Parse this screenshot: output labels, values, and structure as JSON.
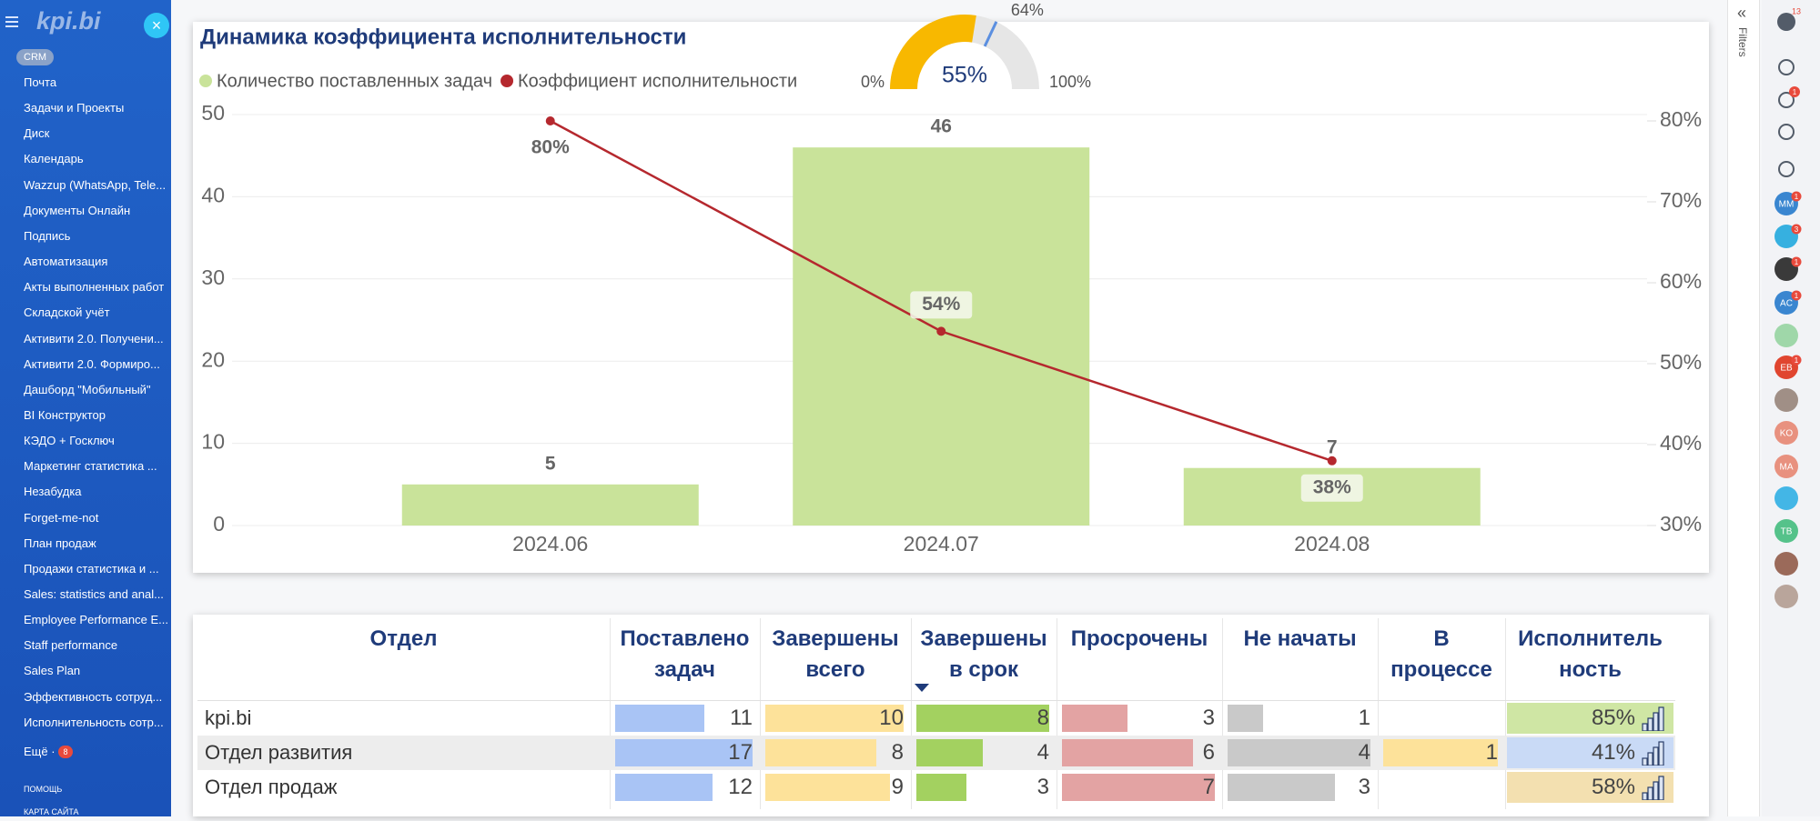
{
  "sidebar": {
    "logo": "kpi.bi",
    "crm": "CRM",
    "items": [
      "Почта",
      "Задачи и Проекты",
      "Диск",
      "Календарь",
      "Wazzup (WhatsApp, Tele...",
      "Документы Онлайн",
      "Подпись",
      "Автоматизация",
      "Акты выполненных работ",
      "Складской учёт",
      "Активити 2.0. Получени...",
      "Активити 2.0. Формиро...",
      "Дашборд \"Мобильный\"",
      "BI Конструктор",
      "КЭДО + Госключ",
      "Маркетинг статистика ...",
      "Незабудка",
      "Forget-me-not",
      "План продаж",
      "Продажи статистика и ...",
      "Sales: statistics and anal...",
      "Employee Performance E...",
      "Staff performance",
      "Sales Plan",
      "Эффективность сотруд...",
      "Исполнительность сотр..."
    ],
    "more": "Ещё ·",
    "more_badge": 8,
    "help": "ПОМОЩЬ",
    "sitemap": "КАРТА САЙТА"
  },
  "chart_data": {
    "type": "bar",
    "title": "Динамика коэффициента исполнительности",
    "categories": [
      "2024.06",
      "2024.07",
      "2024.08"
    ],
    "series": [
      {
        "name": "Количество поставленных задач",
        "color": "#c9e39a",
        "values": [
          5,
          46,
          7
        ]
      },
      {
        "name": "Коэффициент исполнительности",
        "type": "line",
        "axis": "y2",
        "color": "#b5282e",
        "values": [
          80,
          54,
          38
        ],
        "value_labels": [
          "80%",
          "54%",
          "38%"
        ]
      }
    ],
    "ylim": [
      0,
      50
    ],
    "yticks": [
      0,
      10,
      20,
      30,
      40,
      50
    ],
    "y2lim": [
      30,
      80
    ],
    "y2ticks": [
      {
        "value": 30,
        "label": "30%"
      },
      {
        "value": 40,
        "label": "40%"
      },
      {
        "value": 50,
        "label": "50%"
      },
      {
        "value": 60,
        "label": "60%"
      },
      {
        "value": 70,
        "label": "70%"
      },
      {
        "value": 80,
        "label": "80%"
      }
    ],
    "grid": true
  },
  "gauge": {
    "value": 55,
    "label": "55%",
    "color": "#f8b800",
    "min": {
      "value": 0,
      "label": "0%"
    },
    "max": {
      "value": 100,
      "label": "100%"
    },
    "target": {
      "value": 64,
      "label": "64%",
      "color": "#5b8fe0"
    }
  },
  "table": {
    "columns": [
      {
        "lines": [
          "Отдел"
        ]
      },
      {
        "lines": [
          "Поставлено",
          "задач"
        ],
        "color": "#a9c4f5"
      },
      {
        "lines": [
          "Завершены",
          "всего"
        ],
        "color": "#fde29a"
      },
      {
        "lines": [
          "Завершены",
          "в срок"
        ],
        "color": "#a3d160"
      },
      {
        "lines": [
          "Просрочены"
        ],
        "color": "#e3a3a3"
      },
      {
        "lines": [
          "Не начаты"
        ],
        "color": "#c9c9c9"
      },
      {
        "lines": [
          "В",
          "процессе"
        ],
        "color": "#fde29a"
      },
      {
        "lines": [
          "Исполнитель",
          "ность"
        ]
      }
    ],
    "sort_column": 3,
    "rows": [
      {
        "name": "kpi.bi",
        "values": [
          11,
          10,
          8,
          3,
          1,
          null
        ],
        "performance": {
          "value": 85,
          "label": "85%",
          "color": "#cfe6a4"
        }
      },
      {
        "name": "Отдел развития",
        "values": [
          17,
          8,
          4,
          6,
          4,
          1
        ],
        "performance": {
          "value": 41,
          "label": "41%",
          "color": "#c9daf6"
        }
      },
      {
        "name": "Отдел продаж",
        "values": [
          12,
          9,
          3,
          7,
          3,
          null
        ],
        "performance": {
          "value": 58,
          "label": "58%",
          "color": "#f3e0b0"
        }
      }
    ]
  },
  "filters": "Filters",
  "right_bar": {
    "help_badge": 13,
    "bell_badge": 1,
    "avatars": [
      {
        "initials": "MM",
        "badge": 1
      },
      {
        "badge": 3
      },
      {
        "badge": 1
      },
      {
        "initials": "AC",
        "badge": 1
      },
      {
        "initials": "EB",
        "badge": 1
      },
      {
        "initials": "KO"
      },
      {
        "initials": "MA"
      },
      {
        "initials": "TB"
      }
    ]
  }
}
